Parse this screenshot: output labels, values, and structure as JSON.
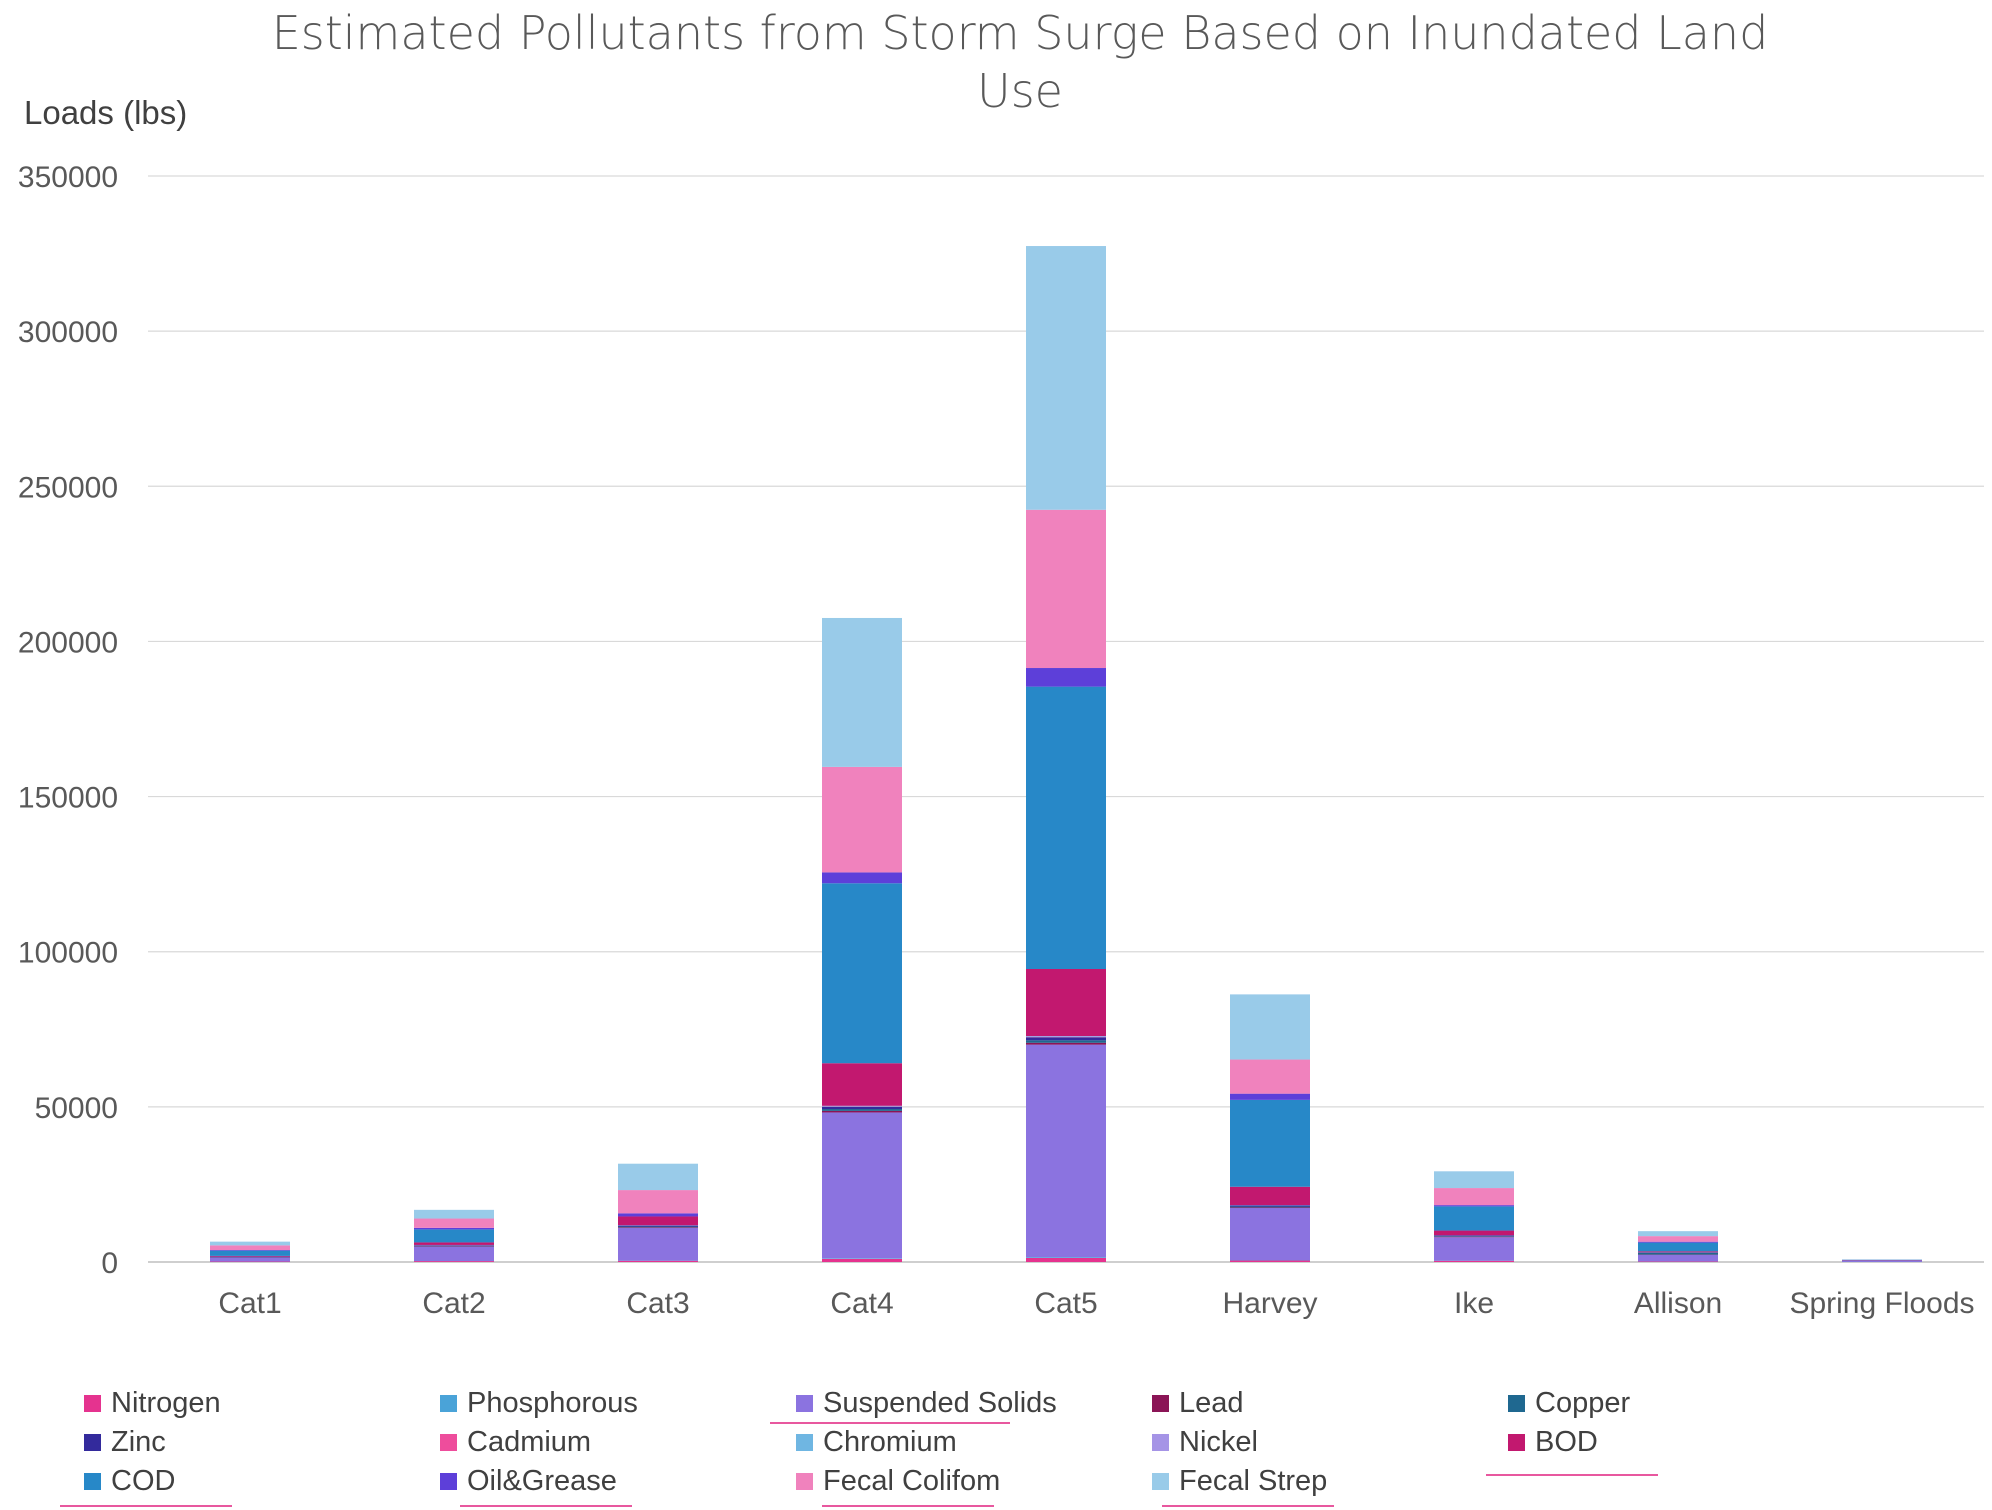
{
  "chart_data": {
    "type": "stacked-bar",
    "title": "Estimated Pollutants from Storm Surge Based on Inundated Land Use",
    "ylabel": "Loads (lbs)",
    "xlabel": "",
    "ylim": [
      0,
      350000
    ],
    "yticks": [
      0,
      50000,
      100000,
      150000,
      200000,
      250000,
      300000,
      350000
    ],
    "grid": true,
    "legend_position": "bottom",
    "categories": [
      "Cat1",
      "Cat2",
      "Cat3",
      "Cat4",
      "Cat5",
      "Harvey",
      "Ike",
      "Allison",
      "Spring Floods"
    ],
    "series": [
      {
        "name": "Nitrogen",
        "color": "#e5338f",
        "values": [
          150,
          300,
          400,
          1000,
          1300,
          500,
          400,
          200,
          30
        ]
      },
      {
        "name": "Phosphorous",
        "color": "#4aa3d8",
        "values": [
          30,
          60,
          80,
          200,
          250,
          100,
          80,
          40,
          5
        ]
      },
      {
        "name": "Suspended Solids",
        "color": "#8b73e0",
        "values": [
          1300,
          4600,
          10500,
          47000,
          68500,
          16800,
          7500,
          2100,
          400
        ]
      },
      {
        "name": "Lead",
        "color": "#8b1556",
        "values": [
          50,
          100,
          200,
          500,
          600,
          200,
          150,
          50,
          5
        ]
      },
      {
        "name": "Copper",
        "color": "#1f6890",
        "values": [
          80,
          150,
          250,
          600,
          800,
          300,
          200,
          600,
          5
        ]
      },
      {
        "name": "Zinc",
        "color": "#332a9c",
        "values": [
          100,
          200,
          300,
          700,
          900,
          300,
          200,
          100,
          5
        ]
      },
      {
        "name": "Cadmium",
        "color": "#ee4d9c",
        "values": [
          10,
          20,
          30,
          60,
          80,
          30,
          20,
          10,
          1
        ]
      },
      {
        "name": "Chromium",
        "color": "#6fb6e2",
        "values": [
          20,
          40,
          60,
          150,
          200,
          60,
          40,
          20,
          2
        ]
      },
      {
        "name": "Nickel",
        "color": "#a594e6",
        "values": [
          20,
          40,
          60,
          150,
          200,
          60,
          40,
          20,
          2
        ]
      },
      {
        "name": "BOD",
        "color": "#c2186f",
        "values": [
          200,
          800,
          2800,
          13700,
          21600,
          5900,
          1500,
          300,
          50
        ]
      },
      {
        "name": "COD",
        "color": "#2788c8",
        "values": [
          1700,
          4200,
          0,
          58000,
          91000,
          28000,
          7800,
          2800,
          60
        ]
      },
      {
        "name": "Oil&Grease",
        "color": "#5d3fd9",
        "values": [
          200,
          500,
          1000,
          3500,
          6000,
          2000,
          400,
          300,
          10
        ]
      },
      {
        "name": "Fecal Colifom",
        "color": "#f082bd",
        "values": [
          1500,
          3000,
          7500,
          34000,
          51000,
          11000,
          5500,
          1800,
          100
        ]
      },
      {
        "name": "Fecal Strep",
        "color": "#99cbe9",
        "values": [
          1200,
          2800,
          8500,
          48000,
          85000,
          21000,
          5400,
          1600,
          100
        ]
      }
    ]
  }
}
